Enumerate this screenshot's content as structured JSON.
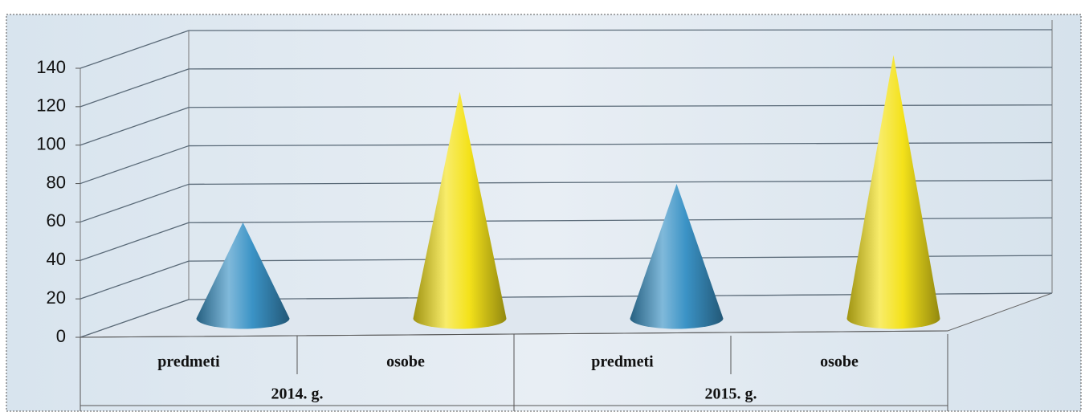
{
  "chart_data": {
    "type": "cone",
    "categories": [
      "predmeti",
      "osobe",
      "predmeti",
      "osobe"
    ],
    "groups": [
      {
        "label": "2014. g.",
        "span": 2
      },
      {
        "label": "2015. g.",
        "span": 2
      }
    ],
    "values": [
      50,
      118,
      70,
      137
    ],
    "colors": [
      "#3b93c6",
      "#f4e21a",
      "#3b93c6",
      "#f4e21a"
    ],
    "ylim": [
      0,
      140
    ],
    "yticks": [
      0,
      20,
      40,
      60,
      80,
      100,
      120,
      140
    ],
    "grid": true
  }
}
